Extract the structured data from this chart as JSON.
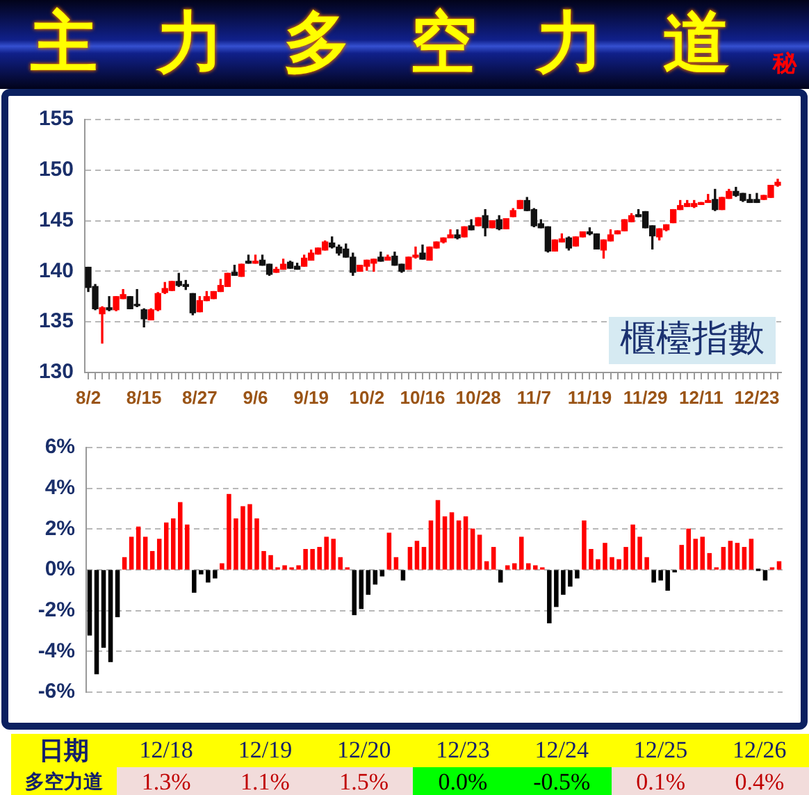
{
  "chart_data": [
    {
      "type": "candlestick",
      "title": "主力多空力道",
      "subtitle": "秘",
      "categories": [
        "8/2",
        null,
        null,
        null,
        null,
        null,
        null,
        null,
        "8/15",
        null,
        null,
        null,
        null,
        null,
        null,
        null,
        "8/27",
        null,
        null,
        null,
        null,
        null,
        null,
        null,
        "9/6",
        null,
        null,
        null,
        null,
        null,
        null,
        null,
        "9/19",
        null,
        null,
        null,
        null,
        null,
        null,
        null,
        "10/2",
        null,
        null,
        null,
        null,
        null,
        null,
        null,
        "10/16",
        null,
        null,
        null,
        null,
        null,
        null,
        null,
        "10/28",
        null,
        null,
        null,
        null,
        null,
        null,
        null,
        "11/7",
        null,
        null,
        null,
        null,
        null,
        null,
        null,
        "11/19",
        null,
        null,
        null,
        null,
        null,
        null,
        null,
        "11/29",
        null,
        null,
        null,
        null,
        null,
        null,
        null,
        "12/11",
        null,
        null,
        null,
        null,
        null,
        null,
        null,
        "12/23",
        null,
        null,
        null
      ],
      "ohlc": [
        [
          140.4,
          140.4,
          138.0,
          138.4
        ],
        [
          138.5,
          138.7,
          136.2,
          136.3
        ],
        [
          135.8,
          136.5,
          132.9,
          136.4
        ],
        [
          136.4,
          137.5,
          136.1,
          136.2
        ],
        [
          136.2,
          137.5,
          136.1,
          137.5
        ],
        [
          137.3,
          138.2,
          137.3,
          137.7
        ],
        [
          137.5,
          137.5,
          136.3,
          136.3
        ],
        [
          136.7,
          138.2,
          136.5,
          136.6
        ],
        [
          136.2,
          136.3,
          134.5,
          135.3
        ],
        [
          135.2,
          136.3,
          135.2,
          136.2
        ],
        [
          136.2,
          137.9,
          136.1,
          137.8
        ],
        [
          137.9,
          138.9,
          137.8,
          138.3
        ],
        [
          138.1,
          139.0,
          138.1,
          139.0
        ],
        [
          139.0,
          139.8,
          138.5,
          138.6
        ],
        [
          138.7,
          139.1,
          138.2,
          138.5
        ],
        [
          137.8,
          137.8,
          135.7,
          135.9
        ],
        [
          136.0,
          137.5,
          136.0,
          137.1
        ],
        [
          137.1,
          138.0,
          137.1,
          137.5
        ],
        [
          137.3,
          138.0,
          137.3,
          138.0
        ],
        [
          138.0,
          139.2,
          138.0,
          138.6
        ],
        [
          138.5,
          139.8,
          138.5,
          139.8
        ],
        [
          139.9,
          140.6,
          139.6,
          139.6
        ],
        [
          139.5,
          140.7,
          139.5,
          140.7
        ],
        [
          141.0,
          141.6,
          140.8,
          140.8
        ],
        [
          140.8,
          141.6,
          140.8,
          141.0
        ],
        [
          141.1,
          141.6,
          140.6,
          140.6
        ],
        [
          140.7,
          140.7,
          139.6,
          139.7
        ],
        [
          139.9,
          140.4,
          139.9,
          140.2
        ],
        [
          140.2,
          141.2,
          140.2,
          140.7
        ],
        [
          140.9,
          141.0,
          140.3,
          140.3
        ],
        [
          140.5,
          140.8,
          140.2,
          140.2
        ],
        [
          140.5,
          141.6,
          140.5,
          141.3
        ],
        [
          141.1,
          142.1,
          141.1,
          141.8
        ],
        [
          141.7,
          142.3,
          141.7,
          142.3
        ],
        [
          142.1,
          143.0,
          142.1,
          142.9
        ],
        [
          142.8,
          143.4,
          142.3,
          142.4
        ],
        [
          142.4,
          142.6,
          141.6,
          141.8
        ],
        [
          142.2,
          142.7,
          141.4,
          141.4
        ],
        [
          141.4,
          141.8,
          139.6,
          139.9
        ],
        [
          140.0,
          140.6,
          140.0,
          140.6
        ],
        [
          140.5,
          141.1,
          140.1,
          141.1
        ],
        [
          140.8,
          141.2,
          140.0,
          141.2
        ],
        [
          141.4,
          141.9,
          141.0,
          141.0
        ],
        [
          141.1,
          141.6,
          141.1,
          141.4
        ],
        [
          141.5,
          141.9,
          140.6,
          140.6
        ],
        [
          140.7,
          140.7,
          139.9,
          140.0
        ],
        [
          140.2,
          141.4,
          140.2,
          141.4
        ],
        [
          141.4,
          142.4,
          141.3,
          141.6
        ],
        [
          141.8,
          142.6,
          141.2,
          141.2
        ],
        [
          141.1,
          142.4,
          141.1,
          142.4
        ],
        [
          142.3,
          142.9,
          142.3,
          142.9
        ],
        [
          142.9,
          143.3,
          142.8,
          143.3
        ],
        [
          143.3,
          144.1,
          143.3,
          143.6
        ],
        [
          143.6,
          144.1,
          143.2,
          143.3
        ],
        [
          143.4,
          144.4,
          143.4,
          144.4
        ],
        [
          144.5,
          145.1,
          144.1,
          144.1
        ],
        [
          144.5,
          145.3,
          144.5,
          145.3
        ],
        [
          145.5,
          146.1,
          143.5,
          144.3
        ],
        [
          144.3,
          145.0,
          144.3,
          145.0
        ],
        [
          145.1,
          145.5,
          144.1,
          144.2
        ],
        [
          144.2,
          145.2,
          144.2,
          145.2
        ],
        [
          145.4,
          146.2,
          145.4,
          146.0
        ],
        [
          146.2,
          147.0,
          146.2,
          147.0
        ],
        [
          147.0,
          147.3,
          146.0,
          146.0
        ],
        [
          146.1,
          146.2,
          144.4,
          144.5
        ],
        [
          144.7,
          145.1,
          144.3,
          144.3
        ],
        [
          144.4,
          144.4,
          141.9,
          142.0
        ],
        [
          142.0,
          143.1,
          142.0,
          143.1
        ],
        [
          142.9,
          143.7,
          142.9,
          143.2
        ],
        [
          143.3,
          143.4,
          142.1,
          142.3
        ],
        [
          142.5,
          143.4,
          142.5,
          143.4
        ],
        [
          143.4,
          143.9,
          143.4,
          143.9
        ],
        [
          143.9,
          144.3,
          143.6,
          143.7
        ],
        [
          143.7,
          143.7,
          142.2,
          142.2
        ],
        [
          142.1,
          143.1,
          141.3,
          143.1
        ],
        [
          143.0,
          144.1,
          143.0,
          143.6
        ],
        [
          143.7,
          144.0,
          143.7,
          144.0
        ],
        [
          144.0,
          145.1,
          144.0,
          145.1
        ],
        [
          144.9,
          145.7,
          144.9,
          145.5
        ],
        [
          145.6,
          146.1,
          145.4,
          145.4
        ],
        [
          145.9,
          145.9,
          144.3,
          144.3
        ],
        [
          144.5,
          144.5,
          142.2,
          143.5
        ],
        [
          143.4,
          144.2,
          143.1,
          144.2
        ],
        [
          144.1,
          144.6,
          144.0,
          144.6
        ],
        [
          144.8,
          146.1,
          144.8,
          146.1
        ],
        [
          146.1,
          147.0,
          146.1,
          146.5
        ],
        [
          146.4,
          147.0,
          146.4,
          146.7
        ],
        [
          146.4,
          147.0,
          146.3,
          146.7
        ],
        [
          146.6,
          146.8,
          146.6,
          146.8
        ],
        [
          146.8,
          147.6,
          146.8,
          147.0
        ],
        [
          147.1,
          148.1,
          146.0,
          146.1
        ],
        [
          146.1,
          147.3,
          146.1,
          147.3
        ],
        [
          147.2,
          148.1,
          147.2,
          147.9
        ],
        [
          147.9,
          148.3,
          147.4,
          147.5
        ],
        [
          147.7,
          147.7,
          146.9,
          147.0
        ],
        [
          147.1,
          147.6,
          146.8,
          146.8
        ],
        [
          147.1,
          147.7,
          146.8,
          146.8
        ],
        [
          147.1,
          147.5,
          147.1,
          147.5
        ],
        [
          147.3,
          148.5,
          147.3,
          148.5
        ],
        [
          148.5,
          149.1,
          148.4,
          148.8
        ]
      ],
      "ylim": [
        130,
        155
      ],
      "yticks": [
        130,
        135,
        140,
        145,
        150,
        155
      ],
      "grid": "y",
      "annotations": [
        "櫃檯指數"
      ]
    },
    {
      "type": "bar",
      "categories": [
        null,
        null,
        null,
        null,
        null,
        null,
        null,
        null,
        null,
        null,
        null,
        null,
        null,
        null,
        null,
        null,
        null,
        null,
        null,
        null,
        null,
        null,
        null,
        null,
        null,
        null,
        null,
        null,
        null,
        null,
        null,
        null,
        null,
        null,
        null,
        null,
        null,
        null,
        null,
        null,
        null,
        null,
        null,
        null,
        null,
        null,
        null,
        null,
        null,
        null,
        null,
        null,
        null,
        null,
        null,
        null,
        null,
        null,
        null,
        null,
        null,
        null,
        null,
        null,
        null,
        null,
        null,
        null,
        null,
        null,
        null,
        null,
        null,
        null,
        null,
        null,
        null,
        null,
        null,
        null,
        null,
        null,
        null,
        null,
        null,
        null,
        null,
        null,
        null,
        null,
        null,
        null,
        null,
        null,
        null,
        null,
        null,
        null,
        null,
        null
      ],
      "values": [
        -3.2,
        -5.1,
        -3.8,
        -4.5,
        -2.3,
        0.6,
        1.6,
        2.1,
        1.6,
        0.9,
        1.5,
        2.3,
        2.5,
        3.3,
        2.2,
        -1.1,
        -0.2,
        -0.6,
        -0.4,
        0.3,
        3.7,
        2.5,
        3.1,
        3.2,
        2.5,
        0.9,
        0.7,
        0.1,
        0.2,
        0.1,
        0.2,
        1.0,
        1.0,
        1.1,
        1.6,
        1.5,
        0.6,
        0.1,
        -2.2,
        -1.9,
        -1.2,
        -0.7,
        -0.3,
        1.8,
        0.6,
        -0.5,
        1.1,
        1.4,
        1.1,
        2.4,
        3.4,
        2.6,
        2.8,
        2.4,
        2.6,
        2.0,
        1.7,
        0.4,
        1.1,
        -0.6,
        0.2,
        0.3,
        1.6,
        0.3,
        0.2,
        0.1,
        -2.6,
        -1.8,
        -1.2,
        -0.8,
        -0.4,
        2.4,
        1.0,
        0.5,
        1.3,
        0.6,
        0.5,
        1.1,
        2.2,
        1.6,
        0.6,
        -0.6,
        -0.5,
        -1.0,
        -0.1,
        1.2,
        2.0,
        1.5,
        1.6,
        0.8,
        0.1,
        1.1,
        1.4,
        1.3,
        1.1,
        1.5,
        0.0,
        -0.5,
        0.1,
        0.4
      ],
      "colors": [
        "#000000",
        "#000000",
        "#000000",
        "#000000",
        "#000000",
        "#ff0000",
        "#ff0000",
        "#ff0000",
        "#ff0000",
        "#ff0000",
        "#ff0000",
        "#ff0000",
        "#ff0000",
        "#ff0000",
        "#ff0000",
        "#000000",
        "#000000",
        "#000000",
        "#000000",
        "#ff0000",
        "#ff0000",
        "#ff0000",
        "#ff0000",
        "#ff0000",
        "#ff0000",
        "#ff0000",
        "#ff0000",
        "#ff0000",
        "#ff0000",
        "#ff0000",
        "#ff0000",
        "#ff0000",
        "#ff0000",
        "#ff0000",
        "#ff0000",
        "#ff0000",
        "#ff0000",
        "#ff0000",
        "#000000",
        "#000000",
        "#000000",
        "#000000",
        "#000000",
        "#ff0000",
        "#ff0000",
        "#000000",
        "#ff0000",
        "#ff0000",
        "#ff0000",
        "#ff0000",
        "#ff0000",
        "#ff0000",
        "#ff0000",
        "#ff0000",
        "#ff0000",
        "#ff0000",
        "#ff0000",
        "#ff0000",
        "#ff0000",
        "#000000",
        "#ff0000",
        "#ff0000",
        "#ff0000",
        "#ff0000",
        "#ff0000",
        "#ff0000",
        "#000000",
        "#000000",
        "#000000",
        "#000000",
        "#000000",
        "#ff0000",
        "#ff0000",
        "#ff0000",
        "#ff0000",
        "#ff0000",
        "#ff0000",
        "#ff0000",
        "#ff0000",
        "#ff0000",
        "#ff0000",
        "#000000",
        "#000000",
        "#000000",
        "#000000",
        "#ff0000",
        "#ff0000",
        "#ff0000",
        "#ff0000",
        "#ff0000",
        "#ff0000",
        "#ff0000",
        "#ff0000",
        "#ff0000",
        "#ff0000",
        "#ff0000",
        "#000000",
        "#000000",
        "#ff0000",
        "#ff0000"
      ],
      "ylim": [
        -6,
        6
      ],
      "yticks": [
        {
          "value": -6,
          "label": "-6%"
        },
        {
          "value": -4,
          "label": "-4%"
        },
        {
          "value": -2,
          "label": "-2%"
        },
        {
          "value": 0,
          "label": "0%"
        },
        {
          "value": 2,
          "label": "2%"
        },
        {
          "value": 4,
          "label": "4%"
        },
        {
          "value": 6,
          "label": "6%"
        }
      ],
      "grid": "y",
      "tick_labels": "y"
    },
    {
      "type": "other",
      "xlabel": "日期",
      "ylabel": "多空力道",
      "categories": [
        "12/18",
        "12/19",
        "12/20",
        "12/23",
        "12/24",
        "12/25",
        "12/26"
      ],
      "values": [
        1.3,
        1.1,
        1.5,
        0.0,
        -0.5,
        0.1,
        0.4
      ],
      "value_labels": [
        "1.3%",
        "1.1%",
        "1.5%",
        "0.0%",
        "-0.5%",
        "0.1%",
        "0.4%"
      ]
    }
  ]
}
